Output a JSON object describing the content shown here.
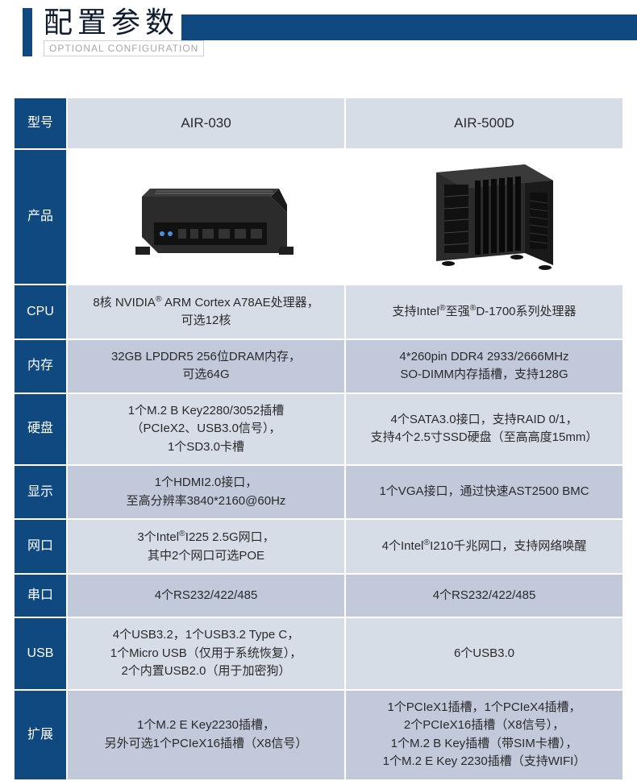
{
  "header": {
    "title_cn": "配置参数",
    "subtitle_en": "OPTIONAL CONFIGURATION"
  },
  "colors": {
    "brand": "#104980",
    "row_light": "#d7dde7",
    "row_dark": "#c1c9da",
    "text": "#2a2a2a",
    "header_text": "#ffffff",
    "subtitle_text": "#a8a8a8",
    "border": "#ffffff"
  },
  "labels": {
    "model": "型号",
    "product": "产品",
    "cpu": "CPU",
    "memory": "内存",
    "storage": "硬盘",
    "display": "显示",
    "lan": "网口",
    "serial": "串口",
    "usb": "USB",
    "expansion": "扩展"
  },
  "models": {
    "a": "AIR-030",
    "b": "AIR-500D"
  },
  "specs": {
    "cpu": {
      "a": "8核 NVIDIA® ARM Cortex A78AE处理器，\n可选12核",
      "b": "支持Intel®至强®D-1700系列处理器"
    },
    "memory": {
      "a": "32GB LPDDR5 256位DRAM内存，\n可选64G",
      "b": "4*260pin DDR4 2933/2666MHz\nSO-DIMM内存插槽，支持128G"
    },
    "storage": {
      "a": "1个M.2 B Key2280/3052插槽\n（PCIeX2、USB3.0信号），\n1个SD3.0卡槽",
      "b": "4个SATA3.0接口，支持RAID 0/1，\n支持4个2.5寸SSD硬盘（至高高度15mm）"
    },
    "display": {
      "a": "1个HDMI2.0接口，\n至高分辨率3840*2160@60Hz",
      "b": "1个VGA接口，通过快速AST2500 BMC"
    },
    "lan": {
      "a": "3个Intel®I225 2.5G网口，\n其中2个网口可选POE",
      "b": "4个Intel®I210千兆网口，支持网络唤醒"
    },
    "serial": {
      "a": "4个RS232/422/485",
      "b": "4个RS232/422/485"
    },
    "usb": {
      "a": "4个USB3.2，1个USB3.2 Type C，\n1个Micro USB（仅用于系统恢复），\n2个内置USB2.0（用于加密狗）",
      "b": "6个USB3.0"
    },
    "expansion": {
      "a": "1个M.2 E Key2230插槽，\n另外可选1个PCIeX16插槽（X8信号）",
      "b": "1个PCIeX1插槽，1个PCIeX4插槽，\n2个PCIeX16插槽（X8信号），\n1个M.2 B Key插槽（带SIM卡槽），\n1个M.2 E Key 2230插槽（支持WIFI）"
    }
  }
}
